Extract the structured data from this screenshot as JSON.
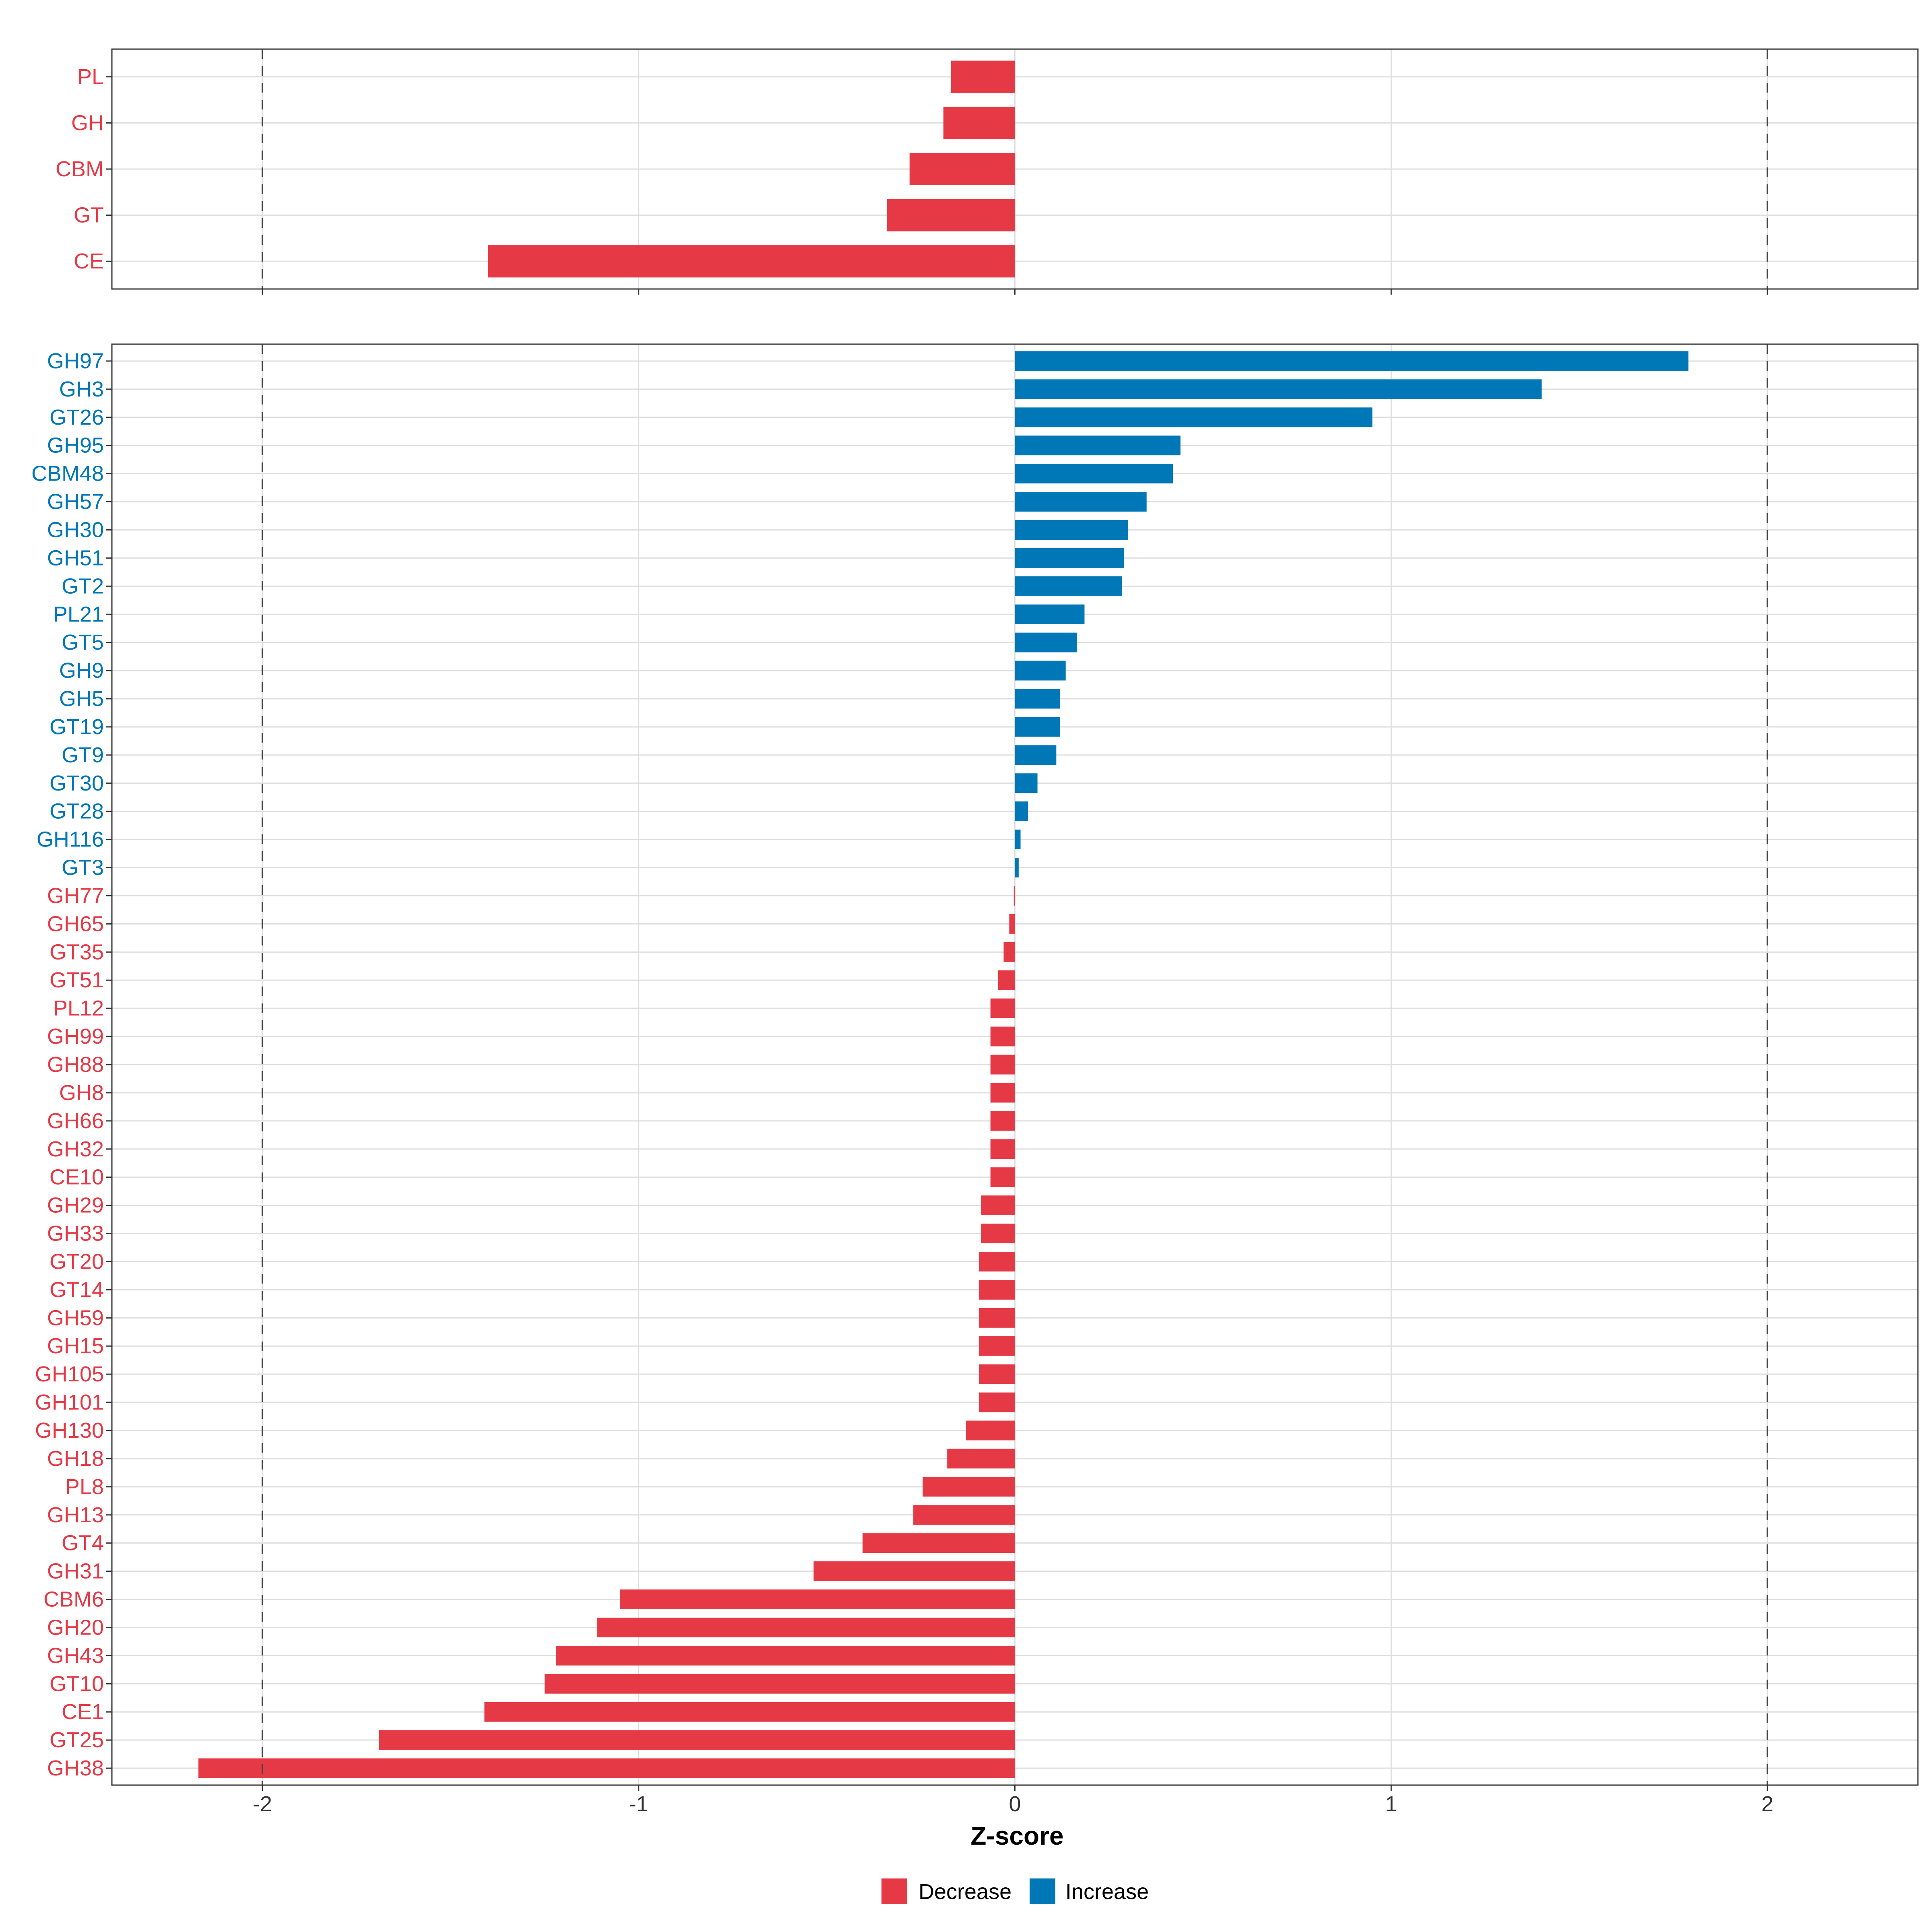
{
  "chart_data": [
    {
      "type": "bar",
      "orientation": "horizontal",
      "panel": "top",
      "categories": [
        "PL",
        "GH",
        "CBM",
        "GT",
        "CE"
      ],
      "values": [
        -0.17,
        -0.19,
        -0.28,
        -0.34,
        -1.4
      ],
      "direction": [
        "Decrease",
        "Decrease",
        "Decrease",
        "Decrease",
        "Decrease"
      ],
      "xlim": [
        -2.4,
        2.4
      ],
      "reference_lines": [
        -2,
        2
      ],
      "grid": true
    },
    {
      "type": "bar",
      "orientation": "horizontal",
      "panel": "bottom",
      "categories": [
        "GH97",
        "GH3",
        "GT26",
        "GH95",
        "CBM48",
        "GH57",
        "GH30",
        "GH51",
        "GT2",
        "PL21",
        "GT5",
        "GH9",
        "GH5",
        "GT19",
        "GT9",
        "GT30",
        "GT28",
        "GH116",
        "GT3",
        "GH77",
        "GH65",
        "GT35",
        "GT51",
        "PL12",
        "GH99",
        "GH88",
        "GH8",
        "GH66",
        "GH32",
        "CE10",
        "GH29",
        "GH33",
        "GT20",
        "GT14",
        "GH59",
        "GH15",
        "GH105",
        "GH101",
        "GH130",
        "GH18",
        "PL8",
        "GH13",
        "GT4",
        "GH31",
        "CBM6",
        "GH20",
        "GH43",
        "GT10",
        "CE1",
        "GT25",
        "GH38"
      ],
      "values": [
        1.79,
        1.4,
        0.95,
        0.44,
        0.42,
        0.35,
        0.3,
        0.29,
        0.285,
        0.185,
        0.165,
        0.135,
        0.12,
        0.12,
        0.11,
        0.06,
        0.035,
        0.015,
        0.01,
        -0.003,
        -0.015,
        -0.03,
        -0.045,
        -0.065,
        -0.065,
        -0.065,
        -0.065,
        -0.065,
        -0.065,
        -0.065,
        -0.09,
        -0.09,
        -0.095,
        -0.095,
        -0.095,
        -0.095,
        -0.095,
        -0.095,
        -0.13,
        -0.18,
        -0.245,
        -0.27,
        -0.405,
        -0.535,
        -1.05,
        -1.11,
        -1.22,
        -1.25,
        -1.41,
        -1.69,
        -2.17
      ],
      "direction": [
        "Increase",
        "Increase",
        "Increase",
        "Increase",
        "Increase",
        "Increase",
        "Increase",
        "Increase",
        "Increase",
        "Increase",
        "Increase",
        "Increase",
        "Increase",
        "Increase",
        "Increase",
        "Increase",
        "Increase",
        "Increase",
        "Increase",
        "Decrease",
        "Decrease",
        "Decrease",
        "Decrease",
        "Decrease",
        "Decrease",
        "Decrease",
        "Decrease",
        "Decrease",
        "Decrease",
        "Decrease",
        "Decrease",
        "Decrease",
        "Decrease",
        "Decrease",
        "Decrease",
        "Decrease",
        "Decrease",
        "Decrease",
        "Decrease",
        "Decrease",
        "Decrease",
        "Decrease",
        "Decrease",
        "Decrease",
        "Decrease",
        "Decrease",
        "Decrease",
        "Decrease",
        "Decrease",
        "Decrease",
        "Decrease"
      ],
      "xlim": [
        -2.4,
        2.4
      ],
      "reference_lines": [
        -2,
        2
      ],
      "grid": true
    }
  ],
  "x_ticks": [
    -2,
    -1,
    0,
    1,
    2
  ],
  "x_tick_labels": [
    "-2",
    "-1",
    "0",
    "1",
    "2"
  ],
  "xlabel": "Z-score",
  "legend": {
    "position": "bottom",
    "items": [
      {
        "label": "Decrease",
        "color": "#e63946"
      },
      {
        "label": "Increase",
        "color": "#0077b6"
      }
    ]
  },
  "colors": {
    "Decrease": "#e63946",
    "Increase": "#0077b6"
  }
}
